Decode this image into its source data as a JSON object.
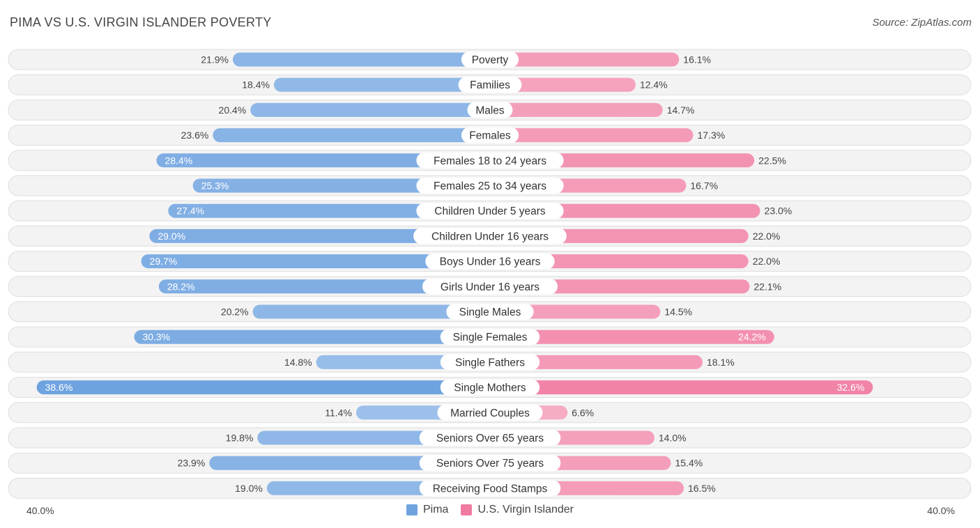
{
  "header": {
    "title": "PIMA VS U.S. VIRGIN ISLANDER POVERTY",
    "source": "Source: ZipAtlas.com"
  },
  "chart_data": {
    "type": "bar",
    "orientation": "horizontal-diverging",
    "title": "PIMA VS U.S. VIRGIN ISLANDER POVERTY",
    "xlim": [
      -40,
      40
    ],
    "axis_min_label": "40.0%",
    "axis_max_label": "40.0%",
    "categories": [
      "Poverty",
      "Families",
      "Males",
      "Females",
      "Females 18 to 24 years",
      "Females 25 to 34 years",
      "Children Under 5 years",
      "Children Under 16 years",
      "Boys Under 16 years",
      "Girls Under 16 years",
      "Single Males",
      "Single Females",
      "Single Fathers",
      "Single Mothers",
      "Married Couples",
      "Seniors Over 65 years",
      "Seniors Over 75 years",
      "Receiving Food Stamps"
    ],
    "series": [
      {
        "name": "Pima",
        "color": "#6fa3e0",
        "values": [
          21.9,
          18.4,
          20.4,
          23.6,
          28.4,
          25.3,
          27.4,
          29.0,
          29.7,
          28.2,
          20.2,
          30.3,
          14.8,
          38.6,
          11.4,
          19.8,
          23.9,
          19.0
        ],
        "labels": [
          "21.9%",
          "18.4%",
          "20.4%",
          "23.6%",
          "28.4%",
          "25.3%",
          "27.4%",
          "29.0%",
          "29.7%",
          "28.2%",
          "20.2%",
          "30.3%",
          "14.8%",
          "38.6%",
          "11.4%",
          "19.8%",
          "23.9%",
          "19.0%"
        ]
      },
      {
        "name": "U.S. Virgin Islander",
        "color": "#f07aa0",
        "values": [
          16.1,
          12.4,
          14.7,
          17.3,
          22.5,
          16.7,
          23.0,
          22.0,
          22.0,
          22.1,
          14.5,
          24.2,
          18.1,
          32.6,
          6.6,
          14.0,
          15.4,
          16.5
        ],
        "labels": [
          "16.1%",
          "12.4%",
          "14.7%",
          "17.3%",
          "22.5%",
          "16.7%",
          "23.0%",
          "22.0%",
          "22.0%",
          "22.1%",
          "14.5%",
          "24.2%",
          "18.1%",
          "32.6%",
          "6.6%",
          "14.0%",
          "15.4%",
          "16.5%"
        ]
      }
    ],
    "legend_position": "bottom-center"
  }
}
